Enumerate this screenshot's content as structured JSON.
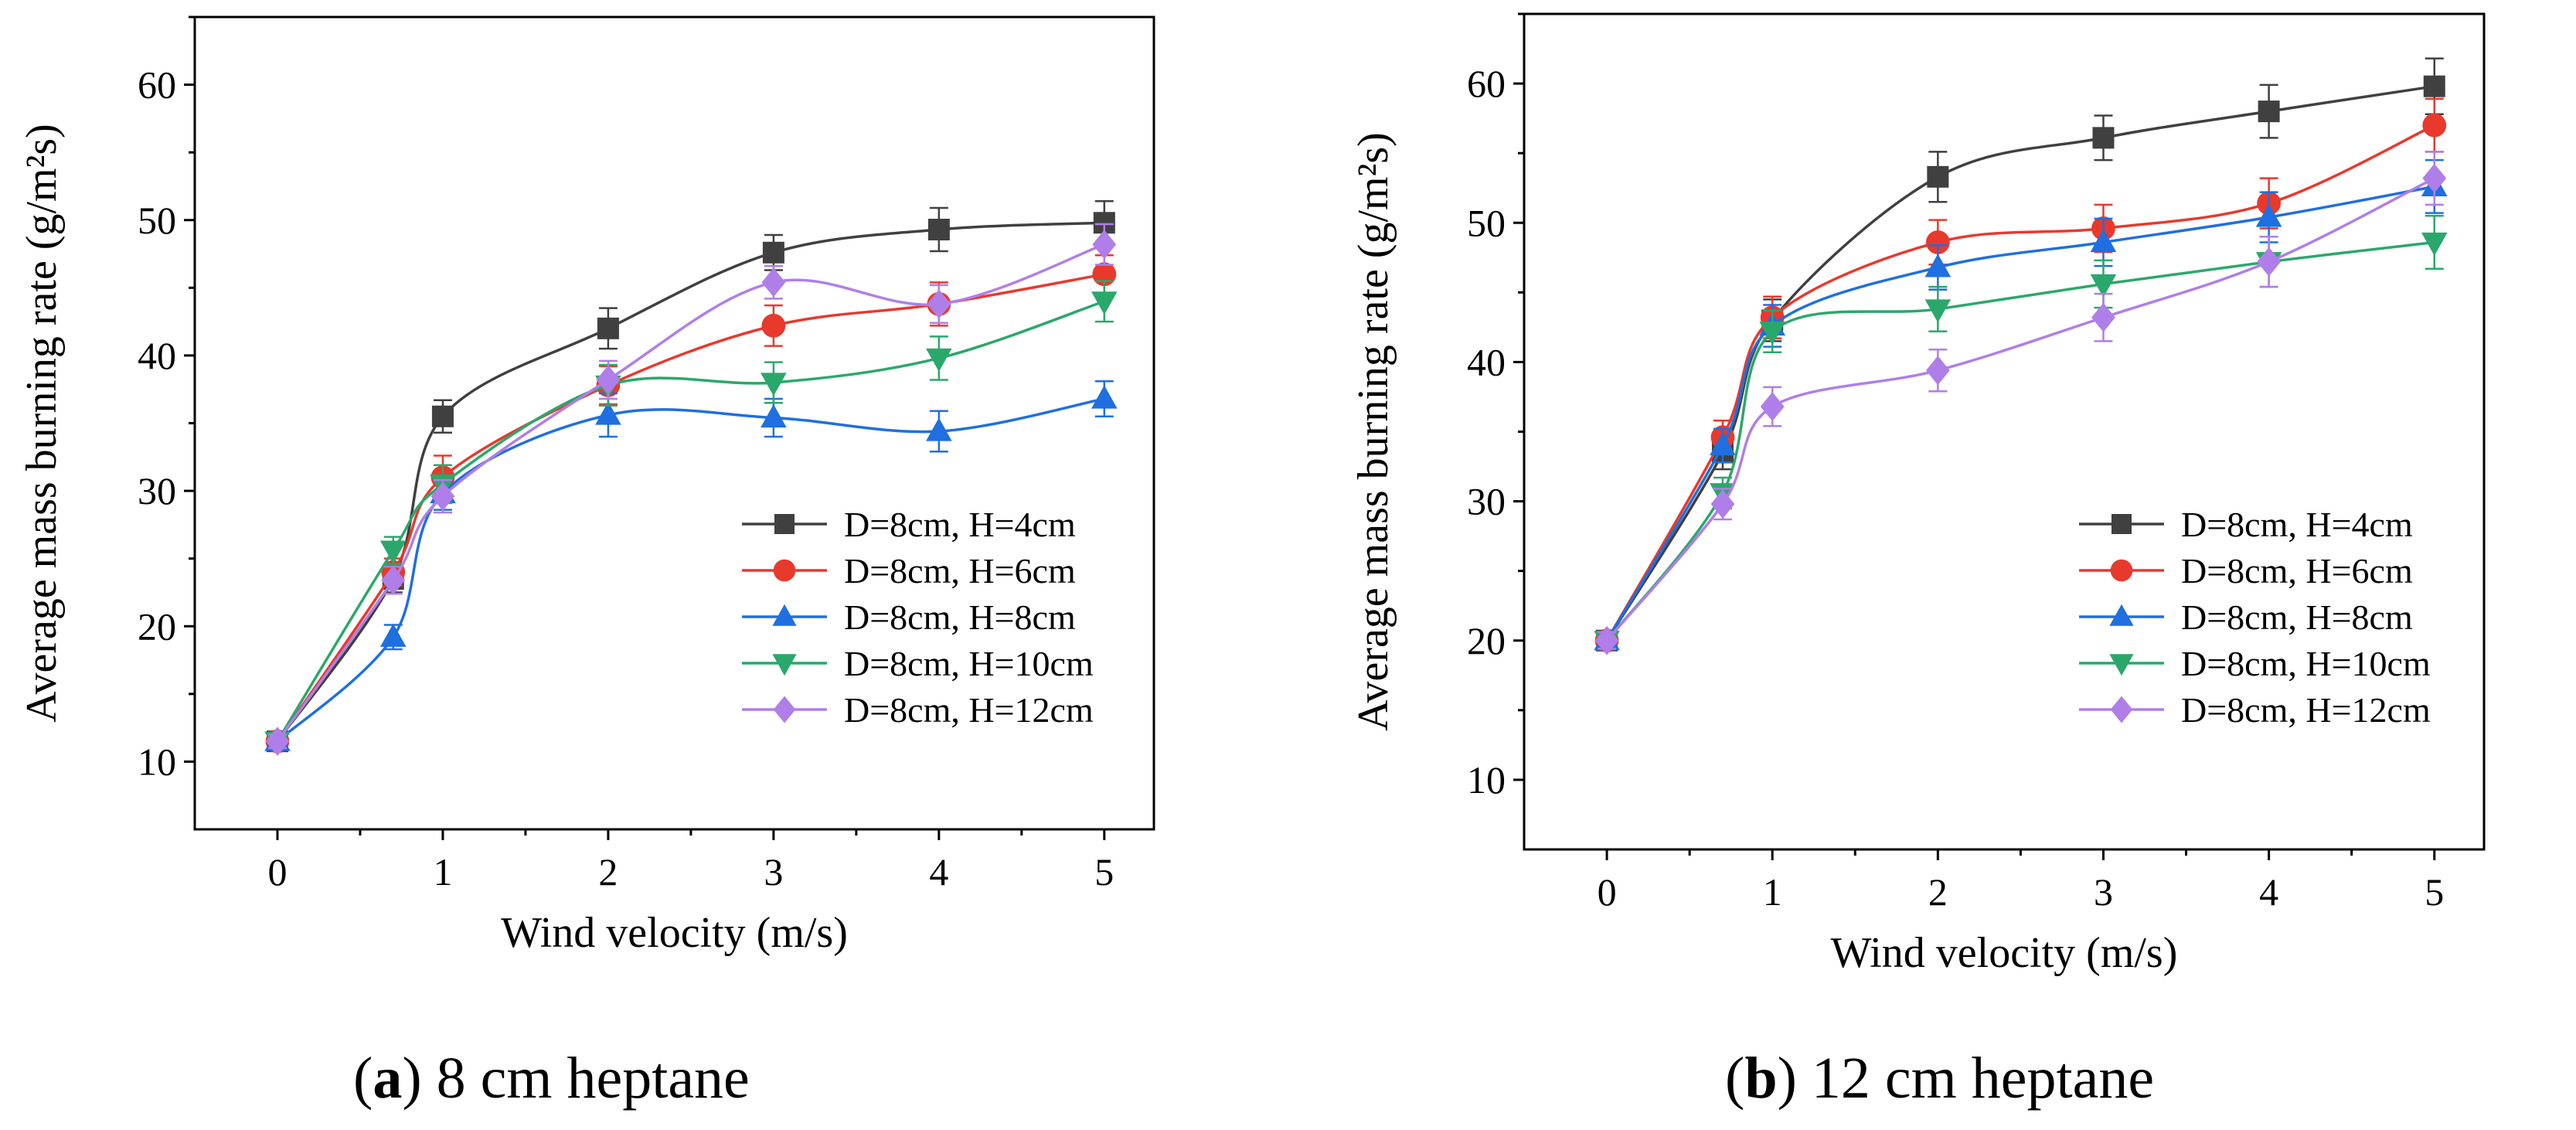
{
  "chart_data": [
    {
      "type": "line",
      "panel": "a",
      "caption_letter": "a",
      "caption_text": " 8 cm heptane",
      "caption_open": "(",
      "caption_close": ")",
      "xlabel": "Wind velocity (m/s)",
      "ylabel": "Average mass burning rate (g/m²s)",
      "xlim": [
        -0.5,
        5.3
      ],
      "ylim": [
        5,
        65
      ],
      "xticks": [
        0,
        1,
        2,
        3,
        4,
        5
      ],
      "yticks": [
        10,
        20,
        30,
        40,
        50,
        60
      ],
      "x": [
        0,
        0.7,
        1,
        2,
        3,
        4,
        5
      ],
      "legend_position": "lower-right",
      "series": [
        {
          "name": "D=8cm, H=4cm",
          "color": "#404040",
          "marker": "square",
          "values": [
            11.5,
            23.5,
            35.5,
            42.0,
            47.6,
            49.3,
            49.8
          ],
          "err": [
            0.5,
            1.0,
            1.2,
            1.5,
            1.3,
            1.6,
            1.6
          ]
        },
        {
          "name": "D=8cm, H=6cm",
          "color": "#e8392d",
          "marker": "circle",
          "values": [
            11.5,
            24.0,
            31.0,
            37.8,
            42.2,
            43.8,
            46.0
          ],
          "err": [
            0.5,
            1.0,
            1.6,
            1.4,
            1.5,
            1.6,
            1.4
          ]
        },
        {
          "name": "D=8cm, H=8cm",
          "color": "#1f6fe0",
          "marker": "triangle-up",
          "values": [
            11.5,
            19.2,
            29.8,
            35.6,
            35.4,
            34.4,
            36.8
          ],
          "err": [
            0.5,
            0.9,
            1.2,
            1.6,
            1.4,
            1.5,
            1.3
          ]
        },
        {
          "name": "D=8cm, H=10cm",
          "color": "#2aa86b",
          "marker": "triangle-down",
          "values": [
            11.5,
            25.6,
            30.5,
            37.8,
            38.0,
            39.8,
            44.0
          ],
          "err": [
            0.5,
            1.0,
            1.4,
            1.5,
            1.5,
            1.6,
            1.5
          ]
        },
        {
          "name": "D=8cm, H=12cm",
          "color": "#b07ee8",
          "marker": "diamond",
          "values": [
            11.5,
            23.4,
            29.6,
            38.2,
            45.4,
            43.8,
            48.2
          ],
          "err": [
            0.5,
            1.0,
            1.2,
            1.4,
            1.2,
            1.4,
            1.5
          ]
        }
      ]
    },
    {
      "type": "line",
      "panel": "b",
      "caption_letter": "b",
      "caption_text": " 12 cm heptane",
      "caption_open": "(",
      "caption_close": ")",
      "xlabel": "Wind velocity (m/s)",
      "ylabel": "Average mass burning rate (g/m²s)",
      "xlim": [
        -0.5,
        5.3
      ],
      "ylim": [
        5,
        65
      ],
      "xticks": [
        0,
        1,
        2,
        3,
        4,
        5
      ],
      "yticks": [
        10,
        20,
        30,
        40,
        50,
        60
      ],
      "x": [
        0,
        0.7,
        1,
        2,
        3,
        4,
        5
      ],
      "legend_position": "lower-right",
      "series": [
        {
          "name": "D=8cm, H=4cm",
          "color": "#404040",
          "marker": "square",
          "values": [
            20.0,
            33.5,
            43.0,
            53.3,
            56.1,
            58.0,
            59.8
          ],
          "err": [
            0.6,
            1.2,
            1.5,
            1.8,
            1.6,
            1.9,
            2.0
          ]
        },
        {
          "name": "D=8cm, H=6cm",
          "color": "#e8392d",
          "marker": "circle",
          "values": [
            20.0,
            34.6,
            43.2,
            48.6,
            49.6,
            51.4,
            57.0
          ],
          "err": [
            0.6,
            1.2,
            1.5,
            1.6,
            1.7,
            1.8,
            1.9
          ]
        },
        {
          "name": "D=8cm, H=8cm",
          "color": "#1f6fe0",
          "marker": "triangle-up",
          "values": [
            20.0,
            34.0,
            42.6,
            46.8,
            48.6,
            50.4,
            52.6
          ],
          "err": [
            0.6,
            1.2,
            1.5,
            1.6,
            1.7,
            1.8,
            1.9
          ]
        },
        {
          "name": "D=8cm, H=10cm",
          "color": "#2aa86b",
          "marker": "triangle-down",
          "values": [
            20.0,
            30.6,
            42.2,
            43.8,
            45.6,
            47.2,
            48.6
          ],
          "err": [
            0.6,
            1.1,
            1.5,
            1.6,
            1.7,
            1.8,
            1.9
          ]
        },
        {
          "name": "D=8cm, H=12cm",
          "color": "#b07ee8",
          "marker": "diamond",
          "values": [
            20.0,
            29.8,
            36.8,
            39.4,
            43.2,
            47.2,
            53.2
          ],
          "err": [
            0.6,
            1.1,
            1.4,
            1.5,
            1.7,
            1.8,
            1.9
          ]
        }
      ]
    }
  ]
}
